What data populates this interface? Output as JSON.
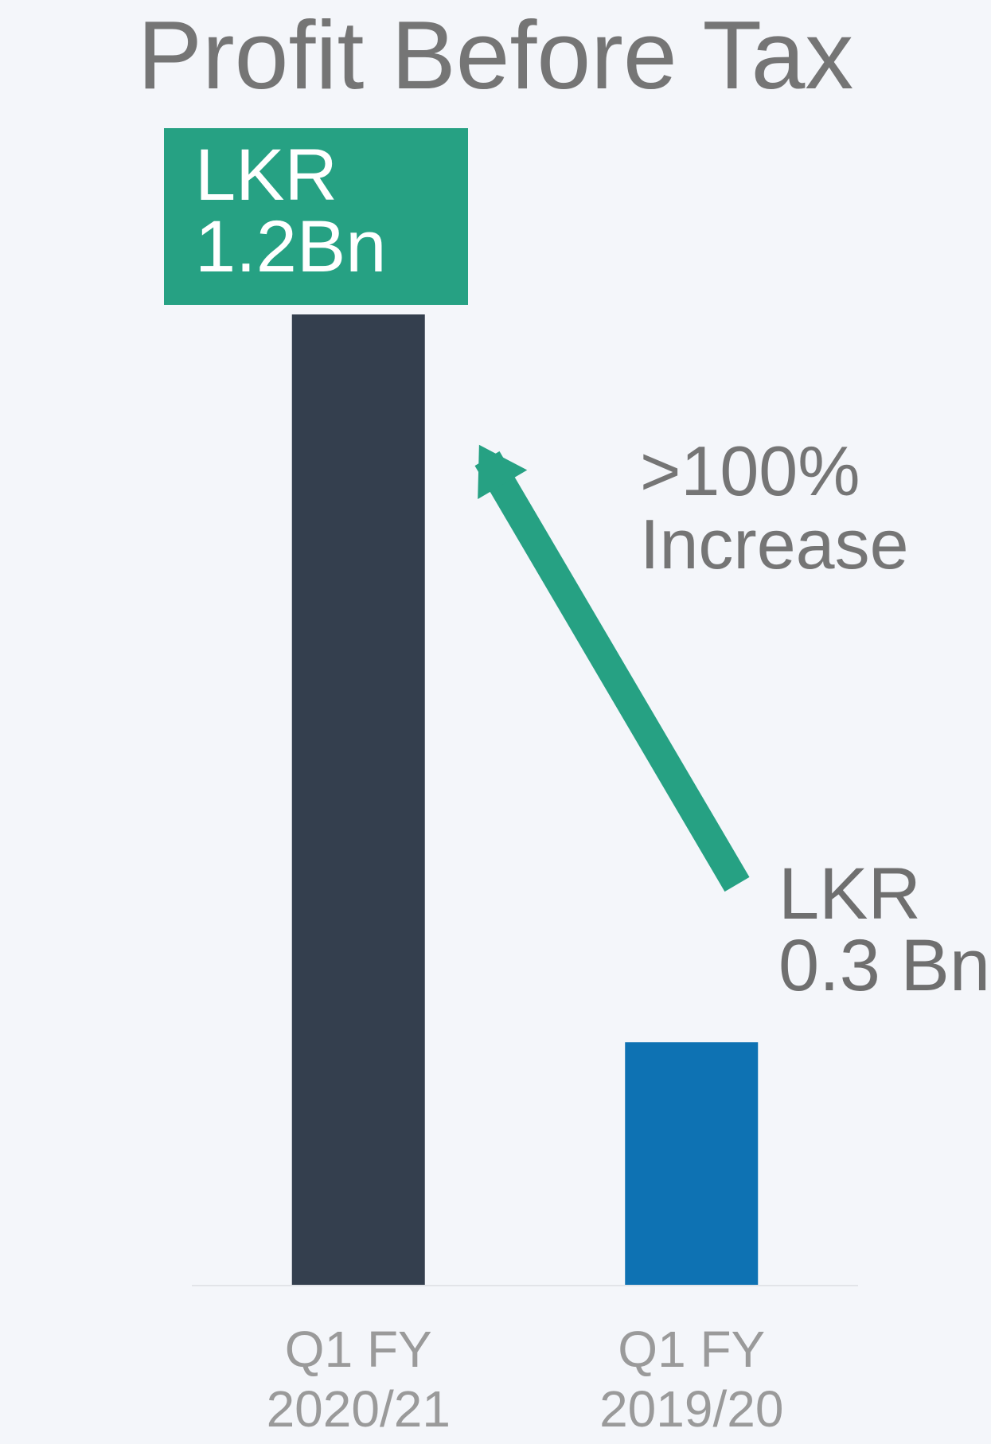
{
  "chart_data": {
    "type": "bar",
    "title": "Profit Before Tax",
    "categories": [
      "Q1 FY 2020/21",
      "Q1 FY 2019/20"
    ],
    "values": [
      1.2,
      0.3
    ],
    "value_labels": [
      "LKR 1.2Bn",
      "LKR 0.3 Bn"
    ],
    "colors": [
      "#343f4e",
      "#0e72b3"
    ],
    "annotation": ">100% Increase",
    "annotation_color": "#26a183"
  }
}
